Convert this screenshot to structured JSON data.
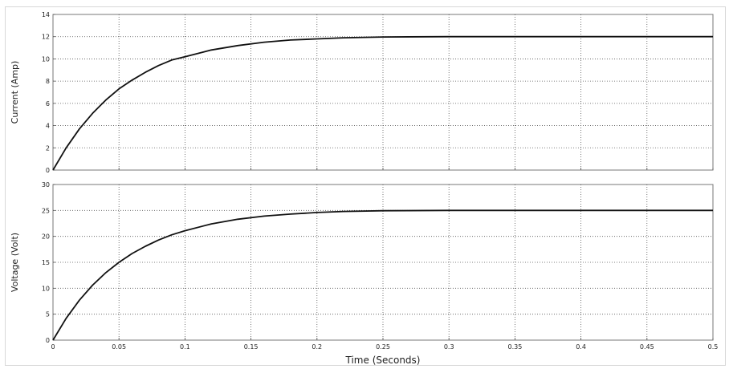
{
  "chart_data": [
    {
      "type": "line",
      "title": "",
      "xlabel": "",
      "ylabel": "Current (Amp)",
      "xlim": [
        0,
        0.5
      ],
      "ylim": [
        0,
        14
      ],
      "xticks": [
        0,
        0.05,
        0.1,
        0.15,
        0.2,
        0.25,
        0.3,
        0.35,
        0.4,
        0.45,
        0.5
      ],
      "xtick_labels": [
        "",
        "",
        "",
        "",
        "",
        "",
        "",
        "",
        "",
        "",
        ""
      ],
      "yticks": [
        0,
        2,
        4,
        6,
        8,
        10,
        12,
        14
      ],
      "ytick_labels": [
        "0",
        "2",
        "4",
        "6",
        "8",
        "10",
        "12",
        "14"
      ],
      "grid": true,
      "series": [
        {
          "color": "#111111",
          "x": [
            0,
            0.01,
            0.02,
            0.03,
            0.04,
            0.05,
            0.06,
            0.07,
            0.08,
            0.09,
            0.1,
            0.12,
            0.14,
            0.16,
            0.18,
            0.2,
            0.22,
            0.25,
            0.3,
            0.35,
            0.4,
            0.45,
            0.5
          ],
          "y": [
            0,
            2.0,
            3.7,
            5.1,
            6.3,
            7.3,
            8.1,
            8.8,
            9.4,
            9.9,
            10.2,
            10.8,
            11.2,
            11.5,
            11.7,
            11.8,
            11.9,
            11.97,
            12.0,
            12.0,
            12.0,
            12.0,
            12.0
          ]
        }
      ]
    },
    {
      "type": "line",
      "title": "",
      "xlabel": "Time (Seconds)",
      "ylabel": "Voltage (Volt)",
      "xlim": [
        0,
        0.5
      ],
      "ylim": [
        0,
        30
      ],
      "xticks": [
        0,
        0.05,
        0.1,
        0.15,
        0.2,
        0.25,
        0.3,
        0.35,
        0.4,
        0.45,
        0.5
      ],
      "xtick_labels": [
        "0",
        "0.05",
        "0.1",
        "0.15",
        "0.2",
        "0.25",
        "0.3",
        "0.35",
        "0.4",
        "0.45",
        "0.5"
      ],
      "yticks": [
        0,
        5,
        10,
        15,
        20,
        25,
        30
      ],
      "ytick_labels": [
        "0",
        "5",
        "10",
        "15",
        "20",
        "25",
        "30"
      ],
      "grid": true,
      "series": [
        {
          "color": "#111111",
          "x": [
            0,
            0.01,
            0.02,
            0.03,
            0.04,
            0.05,
            0.06,
            0.07,
            0.08,
            0.09,
            0.1,
            0.12,
            0.14,
            0.16,
            0.18,
            0.2,
            0.22,
            0.25,
            0.3,
            0.35,
            0.4,
            0.45,
            0.5
          ],
          "y": [
            0,
            4.2,
            7.7,
            10.6,
            13.0,
            15.0,
            16.7,
            18.1,
            19.3,
            20.3,
            21.1,
            22.4,
            23.3,
            23.9,
            24.3,
            24.6,
            24.8,
            24.95,
            25.0,
            25.0,
            25.0,
            25.0,
            25.0
          ]
        }
      ]
    }
  ]
}
